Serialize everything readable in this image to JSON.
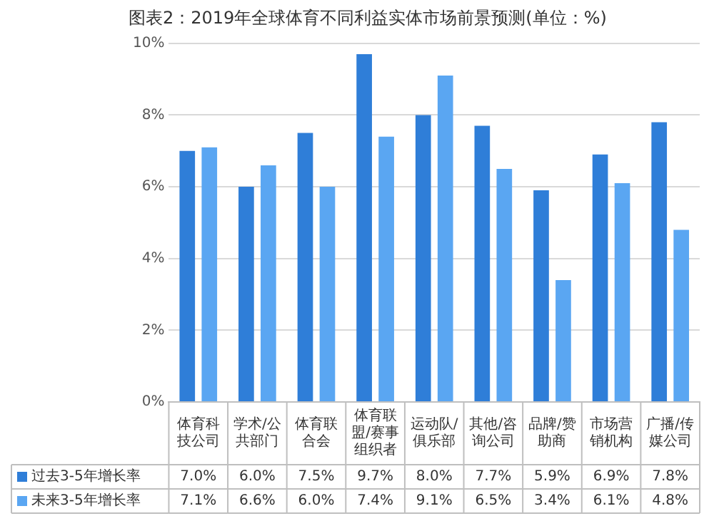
{
  "chart_data": {
    "type": "bar",
    "title": "图表2：2019年全球体育不同利益实体市场前景预测(单位：%)",
    "categories": [
      "体育科技公司",
      "学术/公共部门",
      "体育联合会",
      "体育联盟/赛事组织者",
      "运动队/俱乐部",
      "其他/咨询公司",
      "品牌/赞助商",
      "市场营销机构",
      "广播/传媒公司"
    ],
    "series": [
      {
        "name": "过去3-5年增长率",
        "color": "#2f7ed8",
        "values": [
          7.0,
          6.0,
          7.5,
          9.7,
          8.0,
          7.7,
          5.9,
          6.9,
          7.8
        ],
        "value_labels": [
          "7.0%",
          "6.0%",
          "7.5%",
          "9.7%",
          "8.0%",
          "7.7%",
          "5.9%",
          "6.9%",
          "7.8%"
        ]
      },
      {
        "name": "未来3-5年增长率",
        "color": "#5aa6f2",
        "values": [
          7.1,
          6.6,
          6.0,
          7.4,
          9.1,
          6.5,
          3.4,
          6.1,
          4.8
        ],
        "value_labels": [
          "7.1%",
          "6.6%",
          "6.0%",
          "7.4%",
          "9.1%",
          "6.5%",
          "3.4%",
          "6.1%",
          "4.8%"
        ]
      }
    ],
    "ylim": [
      0,
      10
    ],
    "yticks": [
      {
        "value": 0,
        "label": "0%"
      },
      {
        "value": 2,
        "label": "2%"
      },
      {
        "value": 4,
        "label": "4%"
      },
      {
        "value": 6,
        "label": "6%"
      },
      {
        "value": 8,
        "label": "8%"
      },
      {
        "value": 10,
        "label": "10%"
      }
    ],
    "grid": "y",
    "legend": "bottom"
  }
}
